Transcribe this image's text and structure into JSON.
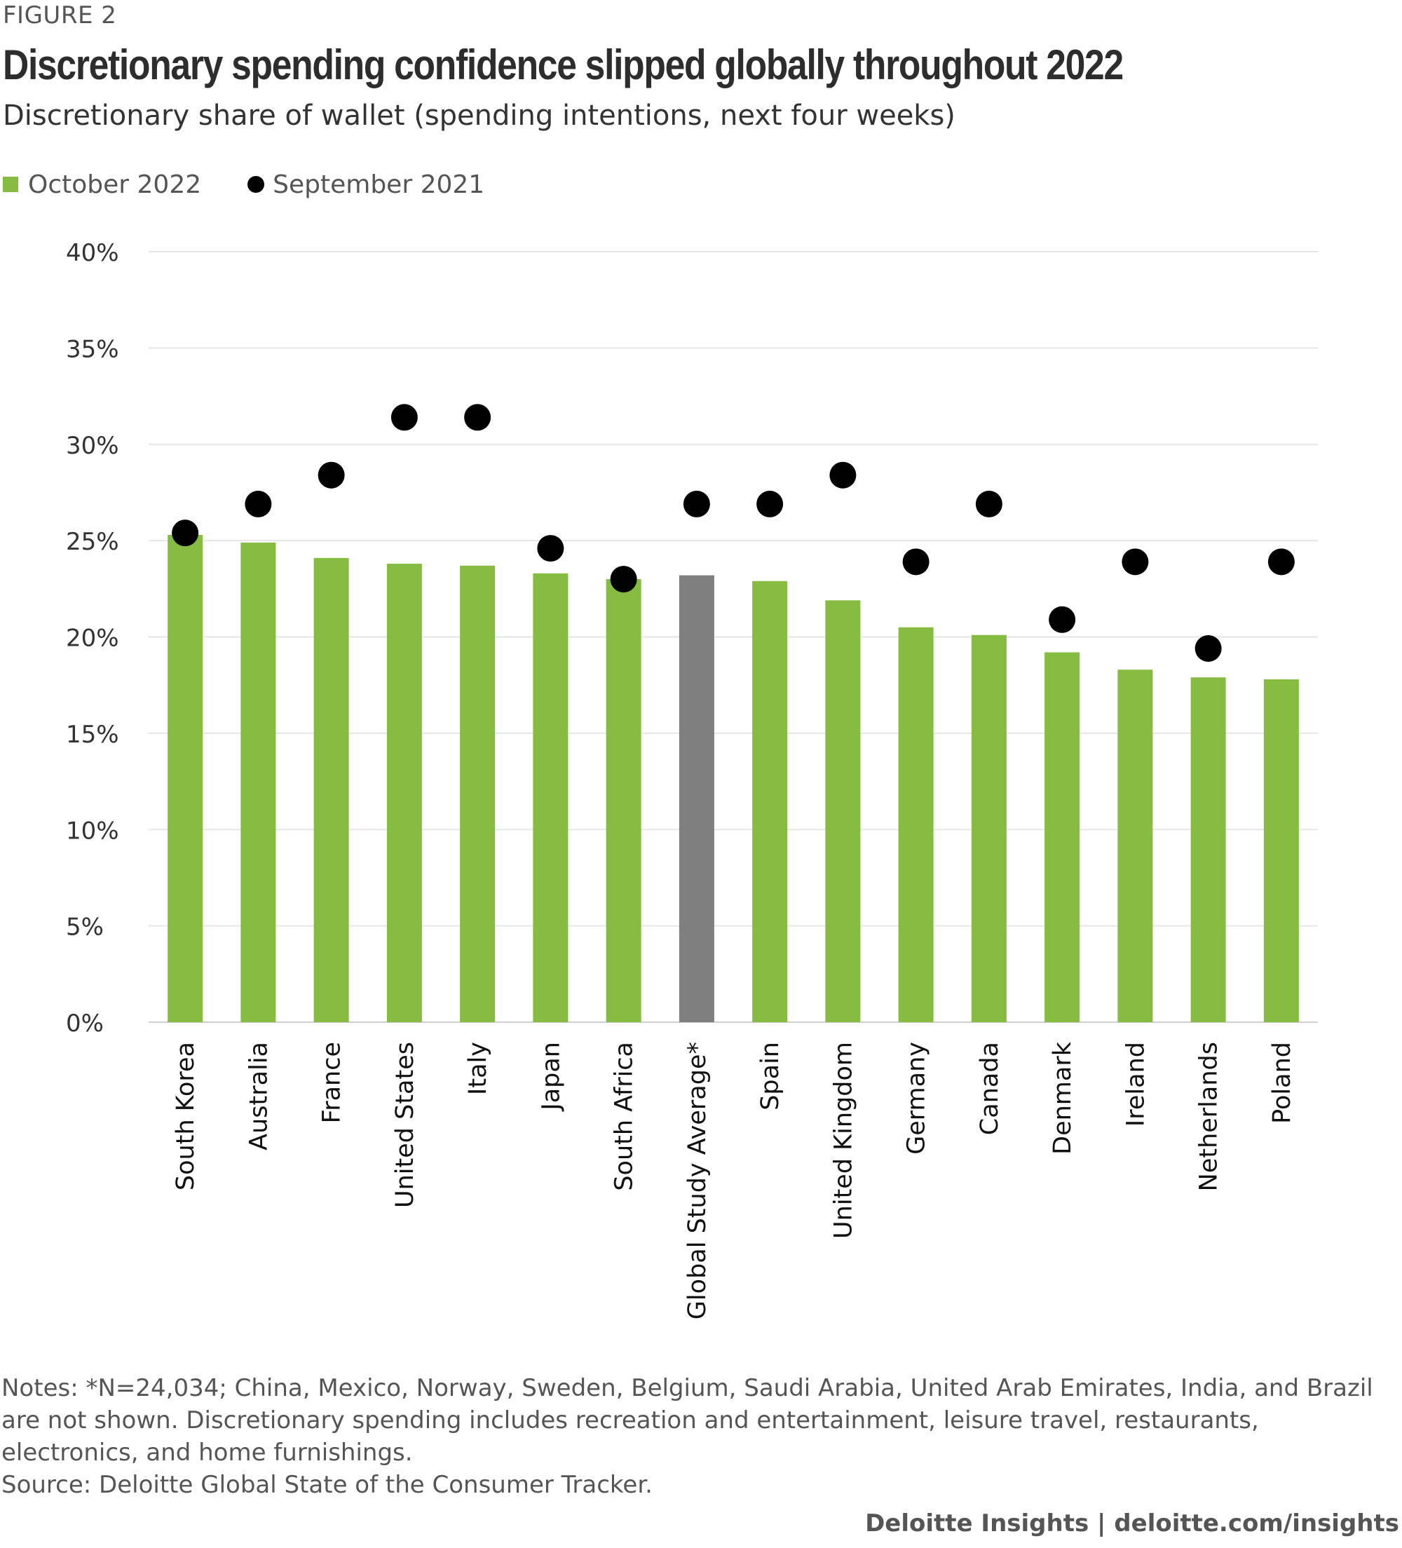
{
  "figure_label": "FIGURE 2",
  "title": "Discretionary spending confidence slipped globally throughout 2022",
  "subtitle": "Discretionary share of wallet (spending intentions, next four weeks)",
  "legend": {
    "bar_label": "October 2022",
    "dot_label": "September 2021"
  },
  "colors": {
    "bar": "#86bc42",
    "highlight_bar": "#7f7f7f",
    "dot": "#000000",
    "grid": "#e6e6e6"
  },
  "chart_data": {
    "type": "bar",
    "title": "Discretionary spending confidence slipped globally throughout 2022",
    "xlabel": "",
    "ylabel": "",
    "ylim": [
      0,
      40
    ],
    "yticks": [
      "0%",
      "5%",
      "10%",
      "15%",
      "20%",
      "25%",
      "30%",
      "35%",
      "40%"
    ],
    "categories": [
      "South Korea",
      "Australia",
      "France",
      "United States",
      "Italy",
      "Japan",
      "South Africa",
      "Global Study Average*",
      "Spain",
      "United Kingdom",
      "Germany",
      "Canada",
      "Denmark",
      "Ireland",
      "Netherlands",
      "Poland"
    ],
    "highlight_category": "Global Study Average*",
    "series": [
      {
        "name": "October 2022",
        "kind": "bar",
        "values": [
          25.3,
          24.9,
          24.1,
          23.8,
          23.7,
          23.3,
          23.0,
          23.2,
          22.9,
          21.9,
          20.5,
          20.1,
          19.2,
          18.3,
          17.9,
          17.8
        ]
      },
      {
        "name": "September 2021",
        "kind": "dot",
        "values": [
          25.4,
          26.9,
          28.4,
          31.4,
          31.4,
          24.6,
          23.0,
          26.9,
          26.9,
          28.4,
          23.9,
          26.9,
          20.9,
          23.9,
          19.4,
          23.9
        ]
      }
    ],
    "grid": true,
    "legend_position": "top-left"
  },
  "notes": {
    "note": "Notes: *N=24,034; China, Mexico, Norway, Sweden, Belgium, Saudi Arabia, United Arab Emirates, India, and Brazil are not shown. Discretionary spending includes recreation and entertainment, leisure travel, restaurants, electronics, and home furnishings.",
    "source": "Source: Deloitte Global State of the Consumer Tracker."
  },
  "footer": "Deloitte Insights | deloitte.com/insights"
}
